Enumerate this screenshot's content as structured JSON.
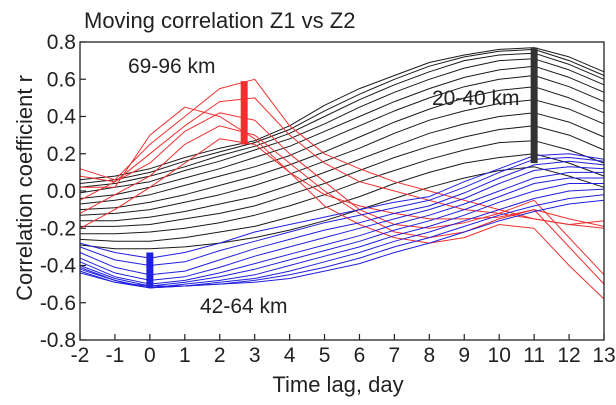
{
  "chart_data": {
    "type": "line",
    "title": "Moving correlation  Z1 vs Z2",
    "xlabel": "Time lag, day",
    "ylabel": "Correlation coefficient r",
    "xlim": [
      -2,
      13
    ],
    "ylim": [
      -0.8,
      0.8
    ],
    "x_ticks": [
      -2,
      -1,
      0,
      1,
      2,
      3,
      4,
      5,
      6,
      7,
      8,
      9,
      10,
      11,
      12,
      13
    ],
    "y_ticks": [
      "0.8",
      "0.6",
      "0.4",
      "0.2",
      "0.0",
      "-0.2",
      "-0.4",
      "-0.6",
      "-0.8"
    ],
    "grid": false,
    "legend": "none",
    "x": [
      -2,
      -1,
      0,
      1,
      2,
      3,
      4,
      5,
      6,
      7,
      8,
      9,
      10,
      11,
      12,
      13
    ],
    "groups": [
      {
        "name": "20-40 km",
        "color": "#1a1a1a",
        "series": [
          {
            "values": [
              0.06,
              0.08,
              0.12,
              0.18,
              0.23,
              0.27,
              0.35,
              0.46,
              0.55,
              0.62,
              0.69,
              0.73,
              0.76,
              0.77,
              0.72,
              0.64
            ]
          },
          {
            "values": [
              0.04,
              0.06,
              0.1,
              0.16,
              0.21,
              0.26,
              0.33,
              0.43,
              0.52,
              0.6,
              0.67,
              0.72,
              0.75,
              0.76,
              0.7,
              0.62
            ]
          },
          {
            "values": [
              0.02,
              0.04,
              0.08,
              0.13,
              0.19,
              0.24,
              0.31,
              0.4,
              0.49,
              0.57,
              0.64,
              0.7,
              0.73,
              0.74,
              0.68,
              0.6
            ]
          },
          {
            "values": [
              -0.01,
              0.02,
              0.05,
              0.11,
              0.16,
              0.22,
              0.28,
              0.36,
              0.45,
              0.53,
              0.6,
              0.66,
              0.7,
              0.71,
              0.65,
              0.57
            ]
          },
          {
            "values": [
              -0.04,
              -0.02,
              0.02,
              0.07,
              0.12,
              0.18,
              0.24,
              0.32,
              0.4,
              0.48,
              0.55,
              0.61,
              0.65,
              0.67,
              0.61,
              0.53
            ]
          },
          {
            "values": [
              -0.07,
              -0.05,
              -0.02,
              0.03,
              0.08,
              0.13,
              0.19,
              0.27,
              0.35,
              0.43,
              0.5,
              0.56,
              0.6,
              0.62,
              0.56,
              0.48
            ]
          },
          {
            "values": [
              -0.1,
              -0.09,
              -0.06,
              -0.02,
              0.03,
              0.08,
              0.14,
              0.21,
              0.29,
              0.37,
              0.44,
              0.5,
              0.54,
              0.56,
              0.5,
              0.42
            ]
          },
          {
            "values": [
              -0.13,
              -0.12,
              -0.1,
              -0.06,
              -0.02,
              0.03,
              0.09,
              0.16,
              0.23,
              0.31,
              0.38,
              0.43,
              0.47,
              0.49,
              0.44,
              0.36
            ]
          },
          {
            "values": [
              -0.16,
              -0.16,
              -0.14,
              -0.11,
              -0.07,
              -0.03,
              0.03,
              0.1,
              0.17,
              0.24,
              0.31,
              0.36,
              0.4,
              0.42,
              0.37,
              0.29
            ]
          },
          {
            "values": [
              -0.19,
              -0.19,
              -0.18,
              -0.15,
              -0.12,
              -0.08,
              -0.02,
              0.04,
              0.11,
              0.18,
              0.24,
              0.29,
              0.33,
              0.35,
              0.3,
              0.22
            ]
          },
          {
            "values": [
              -0.23,
              -0.23,
              -0.22,
              -0.2,
              -0.17,
              -0.13,
              -0.08,
              -0.02,
              0.05,
              0.11,
              0.17,
              0.22,
              0.26,
              0.27,
              0.22,
              0.15
            ]
          },
          {
            "values": [
              -0.26,
              -0.27,
              -0.27,
              -0.25,
              -0.22,
              -0.19,
              -0.14,
              -0.09,
              -0.03,
              0.04,
              0.1,
              0.15,
              0.18,
              0.2,
              0.15,
              0.08
            ]
          },
          {
            "values": [
              -0.29,
              -0.31,
              -0.31,
              -0.3,
              -0.28,
              -0.25,
              -0.21,
              -0.16,
              -0.1,
              -0.04,
              0.02,
              0.07,
              0.11,
              0.13,
              0.08,
              0.02
            ]
          }
        ]
      },
      {
        "name": "69-96 km",
        "color": "#f03030",
        "series": [
          {
            "values": [
              0.12,
              0.06,
              0.25,
              0.4,
              0.55,
              0.6,
              0.35,
              0.2,
              0.12,
              0.05,
              0.0,
              -0.05,
              -0.1,
              -0.15,
              -0.18,
              -0.16
            ]
          },
          {
            "values": [
              0.08,
              0.05,
              0.2,
              0.35,
              0.48,
              0.5,
              0.3,
              0.15,
              0.05,
              0.0,
              -0.05,
              -0.1,
              -0.12,
              -0.15,
              -0.18,
              -0.2
            ]
          },
          {
            "values": [
              0.02,
              0.02,
              0.3,
              0.45,
              0.4,
              0.28,
              0.1,
              -0.02,
              -0.08,
              -0.12,
              -0.15,
              -0.15,
              -0.14,
              -0.1,
              -0.15,
              -0.19
            ]
          },
          {
            "values": [
              -0.05,
              0.05,
              0.15,
              0.32,
              0.42,
              0.38,
              0.2,
              0.05,
              -0.1,
              -0.18,
              -0.2,
              -0.17,
              -0.12,
              -0.05,
              -0.25,
              -0.45
            ]
          },
          {
            "values": [
              -0.12,
              -0.02,
              0.08,
              0.25,
              0.35,
              0.3,
              0.15,
              0.0,
              -0.12,
              -0.22,
              -0.25,
              -0.22,
              -0.15,
              -0.1,
              -0.3,
              -0.5
            ]
          },
          {
            "values": [
              -0.2,
              -0.1,
              0.02,
              0.15,
              0.28,
              0.25,
              0.1,
              -0.08,
              -0.18,
              -0.25,
              -0.28,
              -0.25,
              -0.18,
              -0.2,
              -0.4,
              -0.58
            ]
          }
        ]
      },
      {
        "name": "42-64 km",
        "color": "#2020e0",
        "series": [
          {
            "values": [
              -0.28,
              -0.33,
              -0.36,
              -0.33,
              -0.28,
              -0.22,
              -0.18,
              -0.14,
              -0.1,
              -0.06,
              -0.03,
              0.05,
              0.12,
              0.19,
              0.2,
              0.17
            ]
          },
          {
            "values": [
              -0.3,
              -0.37,
              -0.4,
              -0.38,
              -0.32,
              -0.27,
              -0.22,
              -0.17,
              -0.13,
              -0.09,
              -0.05,
              0.02,
              0.1,
              0.17,
              0.18,
              0.16
            ]
          },
          {
            "values": [
              -0.33,
              -0.41,
              -0.45,
              -0.43,
              -0.37,
              -0.31,
              -0.26,
              -0.21,
              -0.17,
              -0.12,
              -0.08,
              -0.01,
              0.07,
              0.14,
              0.16,
              0.14
            ]
          },
          {
            "values": [
              -0.36,
              -0.44,
              -0.48,
              -0.46,
              -0.41,
              -0.35,
              -0.3,
              -0.25,
              -0.2,
              -0.15,
              -0.1,
              -0.04,
              0.04,
              0.11,
              0.13,
              0.12
            ]
          },
          {
            "values": [
              -0.38,
              -0.46,
              -0.5,
              -0.48,
              -0.44,
              -0.39,
              -0.34,
              -0.29,
              -0.24,
              -0.18,
              -0.13,
              -0.07,
              0.0,
              0.07,
              0.1,
              0.1
            ]
          },
          {
            "values": [
              -0.4,
              -0.47,
              -0.51,
              -0.49,
              -0.46,
              -0.42,
              -0.37,
              -0.32,
              -0.27,
              -0.21,
              -0.16,
              -0.1,
              -0.03,
              0.04,
              0.07,
              0.07
            ]
          },
          {
            "values": [
              -0.41,
              -0.48,
              -0.52,
              -0.5,
              -0.48,
              -0.45,
              -0.4,
              -0.35,
              -0.3,
              -0.24,
              -0.19,
              -0.13,
              -0.06,
              0.0,
              0.04,
              0.04
            ]
          },
          {
            "values": [
              -0.42,
              -0.48,
              -0.52,
              -0.51,
              -0.49,
              -0.47,
              -0.43,
              -0.38,
              -0.33,
              -0.27,
              -0.22,
              -0.16,
              -0.1,
              -0.04,
              0.0,
              0.01
            ]
          },
          {
            "values": [
              -0.43,
              -0.49,
              -0.52,
              -0.51,
              -0.5,
              -0.48,
              -0.45,
              -0.41,
              -0.36,
              -0.3,
              -0.25,
              -0.19,
              -0.13,
              -0.08,
              -0.04,
              -0.02
            ]
          },
          {
            "values": [
              -0.44,
              -0.49,
              -0.51,
              -0.51,
              -0.5,
              -0.49,
              -0.47,
              -0.43,
              -0.39,
              -0.33,
              -0.28,
              -0.22,
              -0.16,
              -0.11,
              -0.07,
              -0.05
            ]
          }
        ]
      }
    ],
    "annotations": [
      {
        "text": "69-96 km",
        "color": "#f03030",
        "bar_x": 2.7,
        "bar_from": 0.25,
        "bar_to": 0.59
      },
      {
        "text": "20-40 km",
        "color": "#333333",
        "bar_x": 11,
        "bar_from": 0.15,
        "bar_to": 0.77
      },
      {
        "text": "42-64 km",
        "color": "#2020e0",
        "bar_x": 0,
        "bar_from": -0.52,
        "bar_to": -0.33
      }
    ]
  }
}
